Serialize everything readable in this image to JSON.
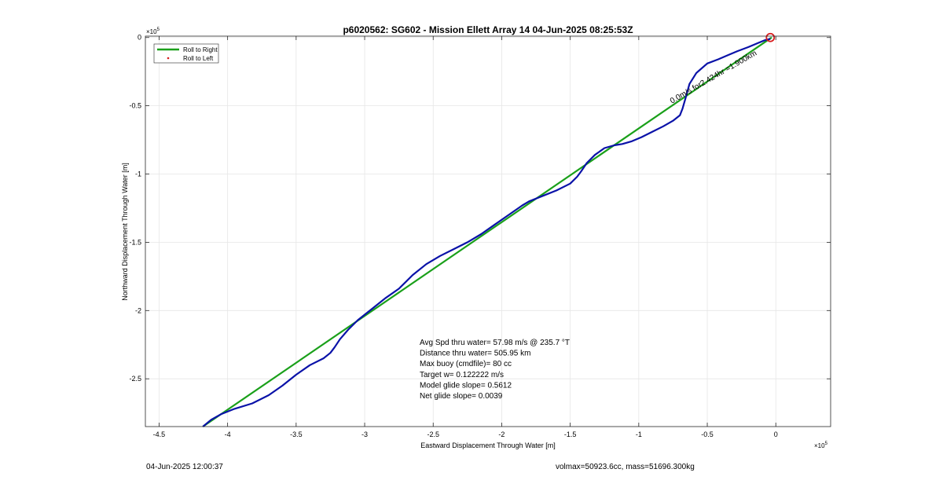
{
  "chart_data": {
    "type": "line",
    "title": "p6020562: SG602 - Mission Ellett Array 14 04-Jun-2025 08:25:53Z",
    "xlabel": "Eastward Displacement Through Water [m]",
    "ylabel": "Northward Displacement Through Water [m]",
    "x_multiplier": "×10",
    "x_multiplier_exp": "5",
    "y_multiplier": "×10",
    "y_multiplier_exp": "5",
    "xlim": [
      -4.6,
      0.4
    ],
    "ylim": [
      -2.85,
      0.01
    ],
    "xticks": [
      -4.5,
      -4,
      -3.5,
      -3,
      -2.5,
      -2,
      -1.5,
      -1,
      -0.5,
      0
    ],
    "xtick_labels": [
      "-4.5",
      "-4",
      "-3.5",
      "-3",
      "-2.5",
      "-2",
      "-1.5",
      "-1",
      "-0.5",
      "0"
    ],
    "yticks": [
      0,
      -0.5,
      -1,
      -1.5,
      -2,
      -2.5
    ],
    "ytick_labels": [
      "0",
      "-0.5",
      "-1",
      "-1.5",
      "-2",
      "-2.5"
    ],
    "grid": true,
    "legend_placement": "top-left",
    "legend": [
      {
        "label": "Roll to Right",
        "color": "#1aa01a",
        "style": "line"
      },
      {
        "label": "Roll to Left",
        "color": "#d81c1c",
        "style": "dot"
      }
    ],
    "series": [
      {
        "color": "#1aa01a",
        "x": [
          -4.18,
          -0.03
        ],
        "y": [
          -2.85,
          0.0
        ]
      },
      {
        "color": "#0a12a8",
        "x": [
          -4.18,
          -4.12,
          -4.05,
          -3.95,
          -3.82,
          -3.7,
          -3.6,
          -3.5,
          -3.4,
          -3.3,
          -3.25,
          -3.22,
          -3.18,
          -3.12,
          -3.05,
          -2.95,
          -2.85,
          -2.75,
          -2.7,
          -2.65,
          -2.55,
          -2.45,
          -2.35,
          -2.25,
          -2.15,
          -2.05,
          -1.95,
          -1.85,
          -1.8,
          -1.7,
          -1.6,
          -1.5,
          -1.45,
          -1.42,
          -1.38,
          -1.32,
          -1.25,
          -1.18,
          -1.12,
          -1.05,
          -0.98,
          -0.9,
          -0.82,
          -0.75,
          -0.7,
          -0.68,
          -0.66,
          -0.63,
          -0.58,
          -0.5,
          -0.42,
          -0.35,
          -0.28,
          -0.2,
          -0.13,
          -0.08,
          -0.04
        ],
        "y": [
          -2.85,
          -2.8,
          -2.76,
          -2.72,
          -2.68,
          -2.62,
          -2.55,
          -2.47,
          -2.4,
          -2.35,
          -2.31,
          -2.27,
          -2.21,
          -2.14,
          -2.07,
          -1.99,
          -1.91,
          -1.84,
          -1.79,
          -1.74,
          -1.66,
          -1.6,
          -1.55,
          -1.5,
          -1.44,
          -1.37,
          -1.3,
          -1.23,
          -1.2,
          -1.16,
          -1.12,
          -1.07,
          -1.02,
          -0.98,
          -0.92,
          -0.86,
          -0.81,
          -0.79,
          -0.78,
          -0.76,
          -0.73,
          -0.69,
          -0.65,
          -0.61,
          -0.57,
          -0.52,
          -0.45,
          -0.34,
          -0.26,
          -0.19,
          -0.16,
          -0.13,
          -0.1,
          -0.07,
          -0.04,
          -0.02,
          -0.01
        ]
      }
    ],
    "start_marker": {
      "x": -0.04,
      "y": 0.0,
      "color": "#d81c1c"
    },
    "rotated_label": "0.0m/s for2.424hr =1.900km",
    "annotations": [
      "Avg Spd thru water= 57.98 m/s @ 235.7 °T",
      "Distance thru water= 505.95 km",
      "Max buoy (cmdfile)= 80 cc",
      "Target w= 0.122222 m/s",
      "Model glide slope= 0.5612",
      "Net glide slope= 0.0039"
    ]
  },
  "footer": {
    "left": "04-Jun-2025 12:00:37",
    "right": "volmax=50923.6cc, mass=51696.300kg"
  }
}
